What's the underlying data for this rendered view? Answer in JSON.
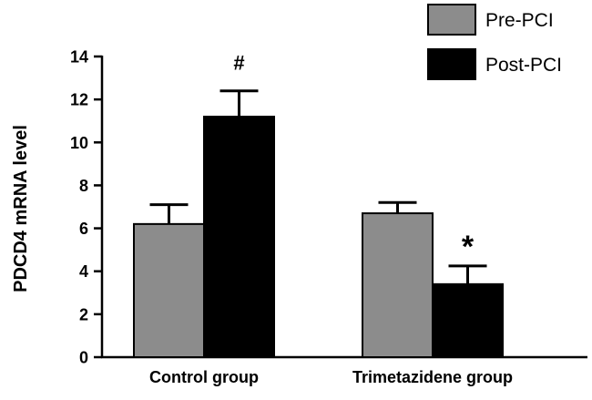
{
  "chart_data": {
    "type": "bar",
    "title": "",
    "xlabel": "",
    "ylabel": "PDCD4 mRNA level",
    "ylim": [
      0,
      14
    ],
    "yticks": [
      0,
      2,
      4,
      6,
      8,
      10,
      12,
      14
    ],
    "categories": [
      "Control group",
      "Trimetazidene group"
    ],
    "series": [
      {
        "name": "Pre-PCI",
        "color": "#8c8c8c",
        "values": [
          6.2,
          6.7
        ],
        "errors": [
          0.9,
          0.5
        ]
      },
      {
        "name": "Post-PCI",
        "color": "#000000",
        "values": [
          11.2,
          3.4
        ],
        "errors": [
          1.2,
          0.85
        ]
      }
    ],
    "annotations": [
      {
        "text": "#",
        "series": 1,
        "category": 0
      },
      {
        "text": "*",
        "series": 1,
        "category": 1
      }
    ],
    "legend": "top-right",
    "grid": false
  }
}
